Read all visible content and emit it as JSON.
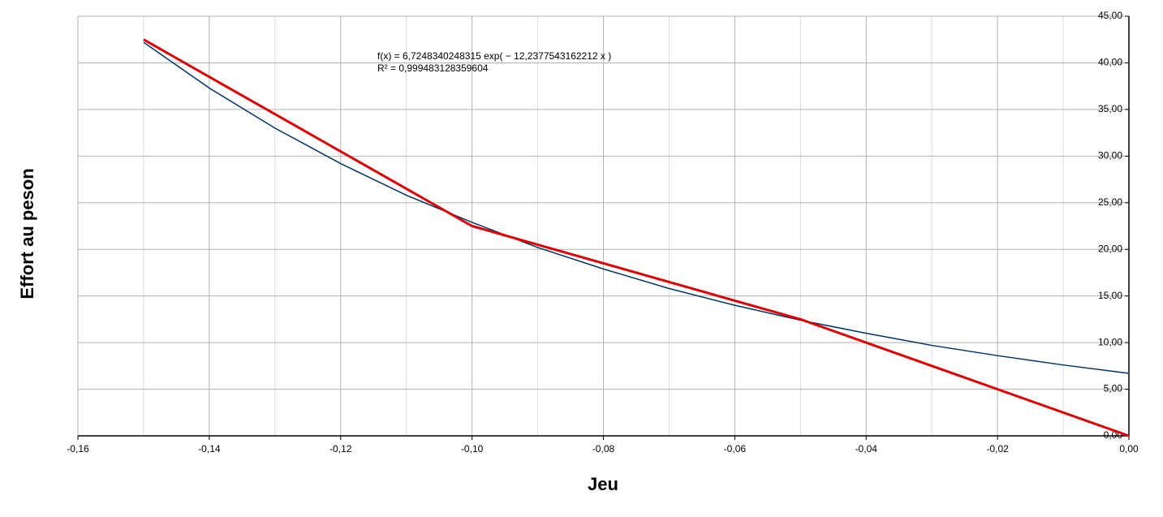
{
  "chart_data": {
    "type": "line",
    "x_label": "Jeu",
    "y_label": "Effort au peson",
    "annotations": [
      "f(x) = 6,7248340248315 exp( − 12,2377543162212 x )",
      "R² = 0,999483128359604"
    ],
    "series": [
      {
        "color": "#e00000",
        "x": [
          -0.15,
          -0.1,
          -0.05,
          0
        ],
        "values": [
          42.5,
          22.5,
          12.5,
          0
        ]
      },
      {
        "color": "#003366",
        "x": [
          -0.15,
          -0.14,
          -0.13,
          -0.12,
          -0.11,
          -0.1,
          -0.09,
          -0.08,
          -0.07,
          -0.06,
          -0.05,
          -0.04,
          -0.03,
          -0.02,
          -0.01,
          0
        ],
        "values": [
          42.2,
          37.3,
          33.0,
          29.2,
          25.8,
          22.9,
          20.2,
          17.9,
          15.8,
          14.0,
          12.4,
          11.0,
          9.7,
          8.6,
          7.6,
          6.7
        ]
      }
    ],
    "xlim": [
      -0.16,
      0
    ],
    "ylim": [
      0,
      45
    ],
    "xticks": [
      {
        "value": -0.16,
        "label": "-0,16"
      },
      {
        "value": -0.14,
        "label": "-0,14"
      },
      {
        "value": -0.12,
        "label": "-0,12"
      },
      {
        "value": -0.1,
        "label": "-0,10"
      },
      {
        "value": -0.08,
        "label": "-0,08"
      },
      {
        "value": -0.06,
        "label": "-0,06"
      },
      {
        "value": -0.04,
        "label": "-0,04"
      },
      {
        "value": -0.02,
        "label": "-0,02"
      },
      {
        "value": 0,
        "label": "0,00"
      }
    ],
    "yticks": [
      {
        "value": 0,
        "label": "0,00"
      },
      {
        "value": 5,
        "label": "5,00"
      },
      {
        "value": 10,
        "label": "10,00"
      },
      {
        "value": 15,
        "label": "15,00"
      },
      {
        "value": 20,
        "label": "20,00"
      },
      {
        "value": 25,
        "label": "25,00"
      },
      {
        "value": 30,
        "label": "30,00"
      },
      {
        "value": 35,
        "label": "35,00"
      },
      {
        "value": 40,
        "label": "40,00"
      },
      {
        "value": 45,
        "label": "45,00"
      }
    ],
    "grid": true
  }
}
